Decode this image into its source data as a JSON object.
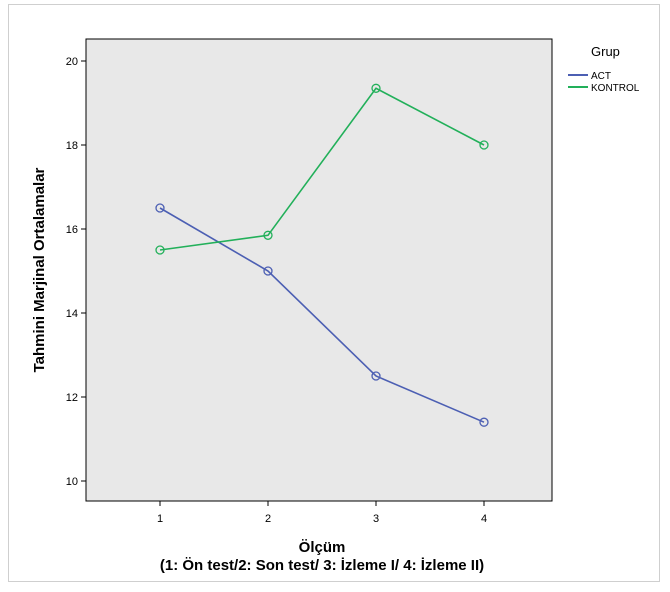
{
  "chart_data": {
    "type": "line",
    "x": [
      1,
      2,
      3,
      4
    ],
    "x_tick_labels": [
      "1",
      "2",
      "3",
      "4"
    ],
    "xlabel": "Ölçüm",
    "xlabel_line2": "(1: Ön test/2: Son test/ 3: İzleme I/ 4: İzleme II)",
    "ylabel": "Tahmini Marjinal Ortalamalar",
    "ylim": [
      10,
      20
    ],
    "y_ticks": [
      10,
      12,
      14,
      16,
      18,
      20
    ],
    "grid": false,
    "legend": {
      "title": "Grup",
      "placement": "right"
    },
    "series": [
      {
        "name": "ACT",
        "color": "#4c5fb3",
        "values": [
          16.5,
          15.0,
          12.5,
          11.4
        ]
      },
      {
        "name": "KONTROL",
        "color": "#22b05a",
        "values": [
          15.5,
          15.85,
          19.35,
          18.0
        ]
      }
    ]
  }
}
